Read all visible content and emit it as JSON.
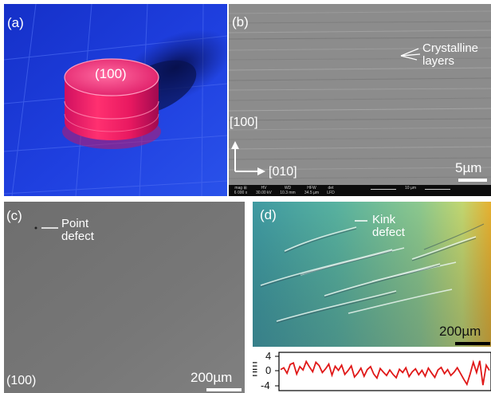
{
  "panels": {
    "a": {
      "label": "(a)",
      "face_label": "(100)"
    },
    "b": {
      "label": "(b)",
      "annotation": "Crystalline\nlayers",
      "axis_vertical": "[100]",
      "axis_horizontal": "[010]",
      "scale": "5µm",
      "meta": {
        "headers": [
          "mag ⊞",
          "HV",
          "WD",
          "HFW",
          "det"
        ],
        "values": [
          "6 000 x",
          "30.00 kV",
          "10.3 mm",
          "34.5 µm",
          "LFD"
        ],
        "bar_label": "10 µm"
      }
    },
    "c": {
      "label": "(c)",
      "annotation": "Point\ndefect",
      "face_label": "(100)",
      "scale": "200µm"
    },
    "d": {
      "label": "(d)",
      "annotation": "Kink\ndefect",
      "scale": "200µm",
      "profile": {
        "ylabel": "nm",
        "yticks": [
          "4",
          "0",
          "-4"
        ],
        "ylim": [
          -4,
          4
        ],
        "values": [
          0.4,
          0.9,
          -0.6,
          1.8,
          2.2,
          -0.8,
          1.2,
          0.3,
          2.6,
          1.1,
          -0.2,
          2.4,
          1.5,
          -0.4,
          0.6,
          1.9,
          -1.1,
          1.3,
          0.2,
          1.6,
          -0.9,
          0.1,
          1.4,
          -1.6,
          -0.6,
          0.8,
          -1.4,
          0.4,
          1.2,
          -0.8,
          -1.9,
          0.7,
          -0.3,
          -1.2,
          0.3,
          -0.9,
          -1.8,
          0.5,
          -0.4,
          0.9,
          -1.5,
          -0.2,
          0.6,
          -1.0,
          0.2,
          -1.4,
          0.8,
          -0.5,
          -1.7,
          0.3,
          1.0,
          -0.7,
          0.4,
          -1.2,
          -0.3,
          0.9,
          -0.6,
          -2.2,
          -3.6,
          -0.8,
          2.4,
          -0.4,
          2.8,
          -3.8,
          1.6,
          0.2
        ]
      }
    }
  }
}
